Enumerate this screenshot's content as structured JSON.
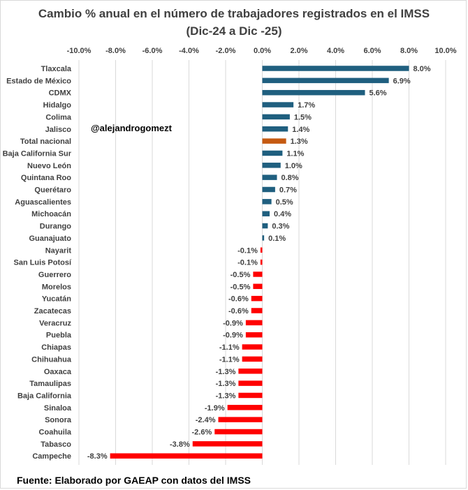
{
  "title_line1": "Cambio % anual en el número de trabajadores registrados en el IMSS",
  "title_line2": "(Dic-24 a Dic -25)",
  "handle": "@alejandrogomezt",
  "footer": "Fuente: Elaborado por GAEAP con datos del IMSS",
  "colors": {
    "positive": "#1f5f7f",
    "highlight": "#c55a11",
    "negative": "#ff0000",
    "grid": "#d9d9d9"
  },
  "chart_data": {
    "type": "bar",
    "orientation": "horizontal",
    "title": "Cambio % anual en el número de trabajadores registrados en el IMSS (Dic-24 a Dic -25)",
    "xlim": [
      -10,
      10
    ],
    "xticks": [
      "-10.0%",
      "-8.0%",
      "-6.0%",
      "-4.0%",
      "-2.0%",
      "0.0%",
      "2.0%",
      "4.0%",
      "6.0%",
      "8.0%",
      "10.0%"
    ],
    "grid": true,
    "categories": [
      "Tlaxcala",
      "Estado de México",
      "CDMX",
      "Hidalgo",
      "Colima",
      "Jalisco",
      "Total nacional",
      "Baja California Sur",
      "Nuevo León",
      "Quintana Roo",
      "Querétaro",
      "Aguascalientes",
      "Michoacán",
      "Durango",
      "Guanajuato",
      "Nayarit",
      "San Luis Potosí",
      "Guerrero",
      "Morelos",
      "Yucatán",
      "Zacatecas",
      "Veracruz",
      "Puebla",
      "Chiapas",
      "Chihuahua",
      "Oaxaca",
      "Tamaulipas",
      "Baja California",
      "Sinaloa",
      "Sonora",
      "Coahuila",
      "Tabasco",
      "Campeche"
    ],
    "values": [
      8.0,
      6.9,
      5.6,
      1.7,
      1.5,
      1.4,
      1.3,
      1.1,
      1.0,
      0.8,
      0.7,
      0.5,
      0.4,
      0.3,
      0.1,
      -0.1,
      -0.1,
      -0.5,
      -0.5,
      -0.6,
      -0.6,
      -0.9,
      -0.9,
      -1.1,
      -1.1,
      -1.3,
      -1.3,
      -1.3,
      -1.9,
      -2.4,
      -2.6,
      -3.8,
      -8.3
    ],
    "labels": [
      "8.0%",
      "6.9%",
      "5.6%",
      "1.7%",
      "1.5%",
      "1.4%",
      "1.3%",
      "1.1%",
      "1.0%",
      "0.8%",
      "0.7%",
      "0.5%",
      "0.4%",
      "0.3%",
      "0.1%",
      "-0.1%",
      "-0.1%",
      "-0.5%",
      "-0.5%",
      "-0.6%",
      "-0.6%",
      "-0.9%",
      "-0.9%",
      "-1.1%",
      "-1.1%",
      "-1.3%",
      "-1.3%",
      "-1.3%",
      "-1.9%",
      "-2.4%",
      "-2.6%",
      "-3.8%",
      "-8.3%"
    ],
    "highlight": "Total nacional"
  }
}
